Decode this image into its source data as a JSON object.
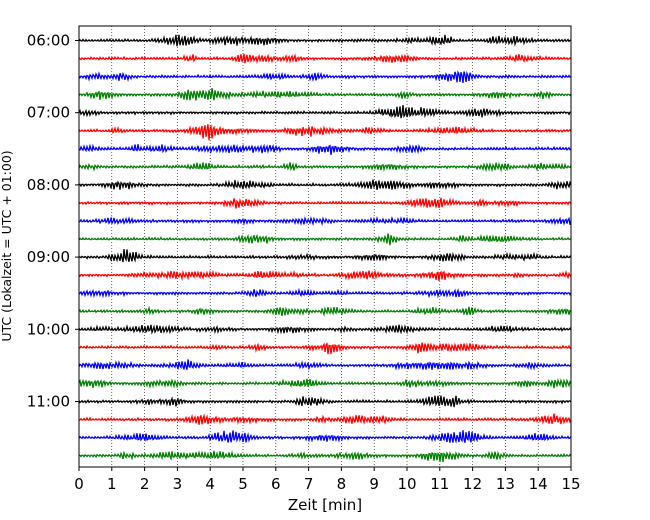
{
  "chart_data": {
    "type": "line",
    "xlabel": "Zeit  [min]",
    "ylabel": "UTC (Lokalzeit = UTC + 01:00)",
    "xlim": [
      0,
      15
    ],
    "x_ticks": [
      0,
      1,
      2,
      3,
      4,
      5,
      6,
      7,
      8,
      9,
      10,
      11,
      12,
      13,
      14,
      15
    ],
    "x_tick_labels": [
      "0",
      "1",
      "2",
      "3",
      "4",
      "5",
      "6",
      "7",
      "8",
      "9",
      "10",
      "11",
      "12",
      "13",
      "14",
      "15"
    ],
    "y_tick_labels": [
      {
        "time": "06:00",
        "trace_index": 0
      },
      {
        "time": "07:00",
        "trace_index": 4
      },
      {
        "time": "08:00",
        "trace_index": 8
      },
      {
        "time": "09:00",
        "trace_index": 12
      },
      {
        "time": "10:00",
        "trace_index": 16
      },
      {
        "time": "11:00",
        "trace_index": 20
      }
    ],
    "grid": "vertical dotted at each minute",
    "trace_colors": [
      "#000000",
      "#ff0000",
      "#0000ff",
      "#008000"
    ],
    "traces": [
      {
        "start": "06:00",
        "color": "#000000"
      },
      {
        "start": "06:15",
        "color": "#ff0000"
      },
      {
        "start": "06:30",
        "color": "#0000ff"
      },
      {
        "start": "06:45",
        "color": "#008000"
      },
      {
        "start": "07:00",
        "color": "#000000"
      },
      {
        "start": "07:15",
        "color": "#ff0000"
      },
      {
        "start": "07:30",
        "color": "#0000ff"
      },
      {
        "start": "07:45",
        "color": "#008000"
      },
      {
        "start": "08:00",
        "color": "#000000"
      },
      {
        "start": "08:15",
        "color": "#ff0000"
      },
      {
        "start": "08:30",
        "color": "#0000ff"
      },
      {
        "start": "08:45",
        "color": "#008000"
      },
      {
        "start": "09:00",
        "color": "#000000"
      },
      {
        "start": "09:15",
        "color": "#ff0000"
      },
      {
        "start": "09:30",
        "color": "#0000ff"
      },
      {
        "start": "09:45",
        "color": "#008000"
      },
      {
        "start": "10:00",
        "color": "#000000"
      },
      {
        "start": "10:15",
        "color": "#ff0000"
      },
      {
        "start": "10:30",
        "color": "#0000ff"
      },
      {
        "start": "10:45",
        "color": "#008000"
      },
      {
        "start": "11:00",
        "color": "#000000"
      },
      {
        "start": "11:15",
        "color": "#ff0000"
      },
      {
        "start": "11:30",
        "color": "#0000ff"
      },
      {
        "start": "11:45",
        "color": "#008000"
      }
    ]
  }
}
